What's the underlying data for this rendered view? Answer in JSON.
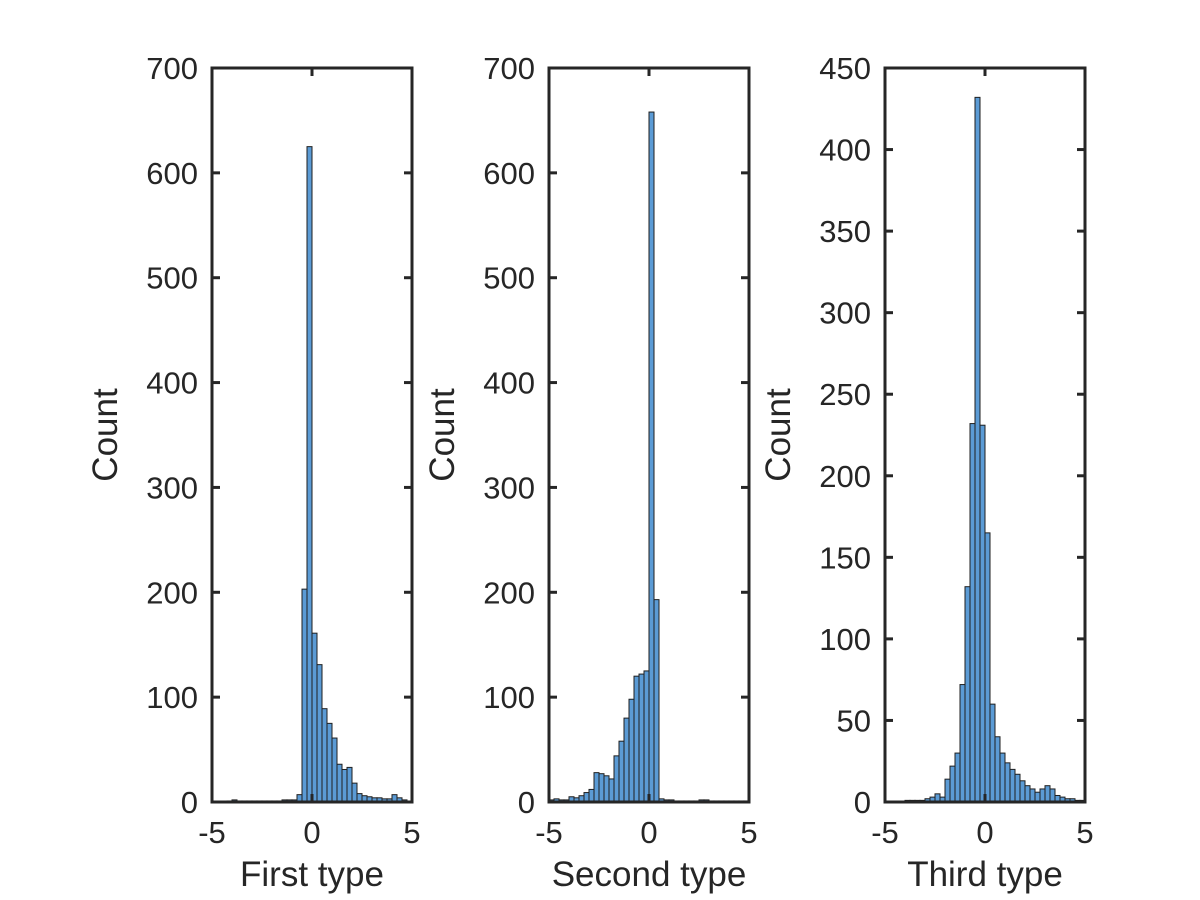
{
  "colors": {
    "bar_fill": "#5b9bd5",
    "bar_edge": "#1f1f1f",
    "axis": "#262626",
    "background": "#ffffff"
  },
  "chart_data": [
    {
      "type": "bar",
      "xlabel": "First type",
      "ylabel": "Count",
      "xlim": [
        -5,
        5
      ],
      "ylim": [
        0,
        700
      ],
      "xticks": [
        -5,
        0,
        5
      ],
      "yticks": [
        0,
        100,
        200,
        300,
        400,
        500,
        600,
        700
      ],
      "grid": false,
      "bin_width": 0.25,
      "bins_start": [
        -4.25,
        -4.0,
        -3.75,
        -3.5,
        -3.25,
        -3.0,
        -2.75,
        -2.5,
        -2.25,
        -2.0,
        -1.75,
        -1.5,
        -1.25,
        -1.0,
        -0.75,
        -0.5,
        -0.25,
        0.0,
        0.25,
        0.5,
        0.75,
        1.0,
        1.25,
        1.5,
        1.75,
        2.0,
        2.25,
        2.5,
        2.75,
        3.0,
        3.25,
        3.5,
        3.75,
        4.0,
        4.25,
        4.5
      ],
      "values": [
        1,
        2,
        1,
        1,
        1,
        1,
        1,
        1,
        1,
        1,
        1,
        2,
        2,
        2,
        7,
        203,
        625,
        161,
        131,
        89,
        75,
        61,
        36,
        31,
        33,
        18,
        8,
        6,
        5,
        4,
        4,
        3,
        3,
        7,
        4,
        2
      ]
    },
    {
      "type": "bar",
      "xlabel": "Second type",
      "ylabel": "Count",
      "xlim": [
        -5,
        5
      ],
      "ylim": [
        0,
        700
      ],
      "xticks": [
        -5,
        0,
        5
      ],
      "yticks": [
        0,
        100,
        200,
        300,
        400,
        500,
        600,
        700
      ],
      "grid": false,
      "bin_width": 0.25,
      "bins_start": [
        -5.0,
        -4.75,
        -4.5,
        -4.25,
        -4.0,
        -3.75,
        -3.5,
        -3.25,
        -3.0,
        -2.75,
        -2.5,
        -2.25,
        -2.0,
        -1.75,
        -1.5,
        -1.25,
        -1.0,
        -0.75,
        -0.5,
        -0.25,
        0.0,
        0.25,
        0.5,
        0.75,
        1.0,
        1.25,
        1.5,
        1.75,
        2.0,
        2.25,
        2.5,
        2.75,
        3.0,
        3.25,
        3.5,
        3.75,
        4.0,
        4.25,
        4.5,
        4.75
      ],
      "values": [
        2,
        3,
        2,
        2,
        5,
        4,
        6,
        9,
        12,
        28,
        27,
        25,
        22,
        44,
        58,
        80,
        98,
        120,
        122,
        125,
        658,
        193,
        3,
        2,
        2,
        1,
        1,
        1,
        1,
        1,
        2,
        2,
        1,
        1,
        1,
        1,
        1,
        1,
        1,
        1
      ]
    },
    {
      "type": "bar",
      "xlabel": "Third type",
      "ylabel": "Count",
      "xlim": [
        -5,
        5
      ],
      "ylim": [
        0,
        450
      ],
      "xticks": [
        -5,
        0,
        5
      ],
      "yticks": [
        0,
        50,
        100,
        150,
        200,
        250,
        300,
        350,
        400,
        450
      ],
      "grid": false,
      "bin_width": 0.25,
      "bins_start": [
        -4.0,
        -3.75,
        -3.5,
        -3.25,
        -3.0,
        -2.75,
        -2.5,
        -2.25,
        -2.0,
        -1.75,
        -1.5,
        -1.25,
        -1.0,
        -0.75,
        -0.5,
        -0.25,
        0.0,
        0.25,
        0.5,
        0.75,
        1.0,
        1.25,
        1.5,
        1.75,
        2.0,
        2.25,
        2.5,
        2.75,
        3.0,
        3.25,
        3.5,
        3.75,
        4.0,
        4.25,
        4.5,
        4.75
      ],
      "values": [
        1,
        1,
        1,
        1,
        2,
        3,
        5,
        3,
        14,
        22,
        30,
        72,
        132,
        232,
        432,
        231,
        165,
        60,
        40,
        30,
        24,
        20,
        17,
        13,
        10,
        8,
        6,
        8,
        10,
        8,
        4,
        3,
        2,
        2,
        1,
        1
      ]
    }
  ]
}
